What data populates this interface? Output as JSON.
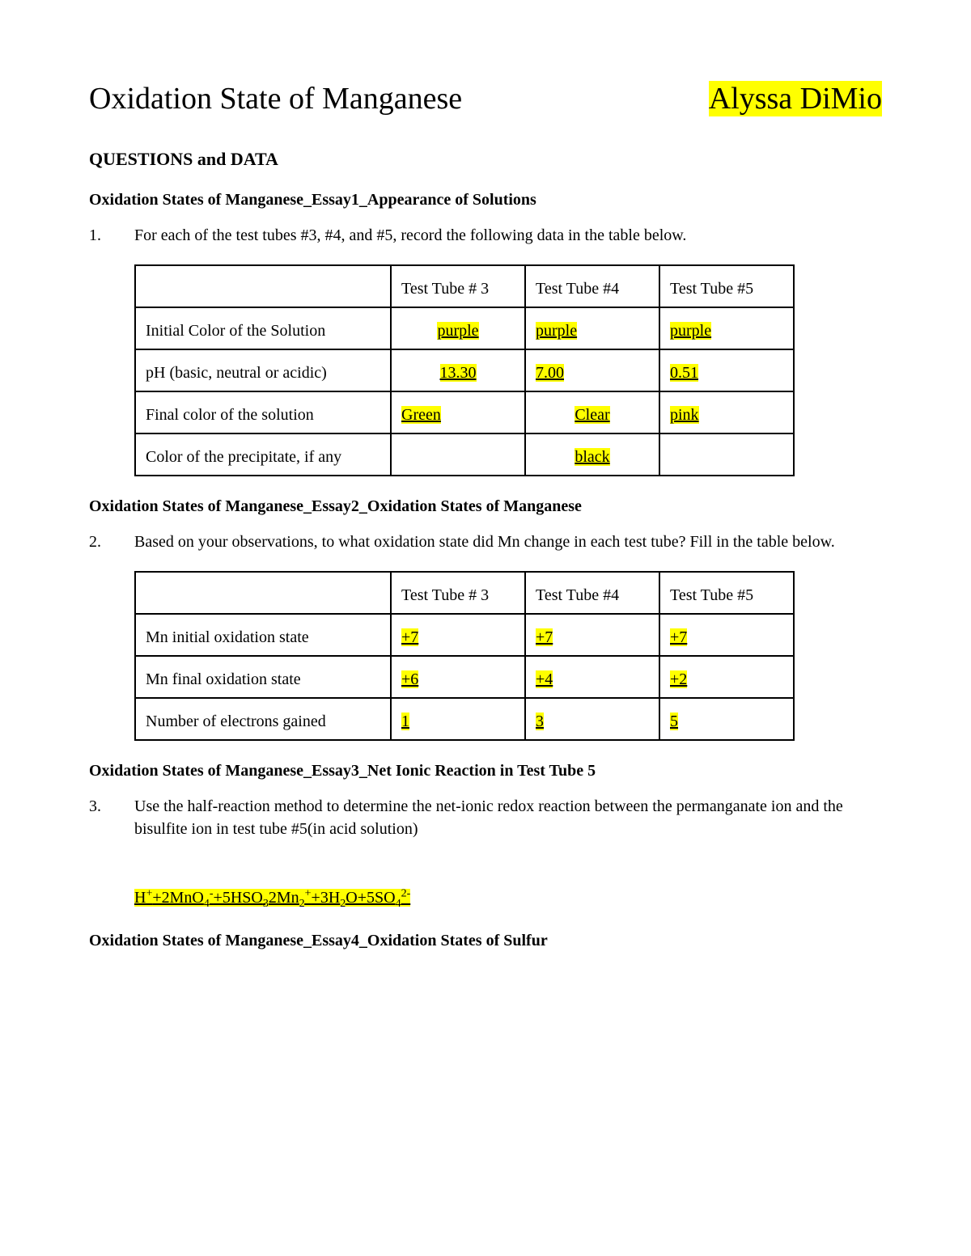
{
  "header": {
    "title": "Oxidation State of Manganese",
    "student": "Alyssa DiMio"
  },
  "section_title": "QUESTIONS and DATA",
  "essay1": {
    "heading": "Oxidation States of Manganese_Essay1_Appearance of Solutions",
    "q_num": "1.",
    "q_text": "For each of the test tubes #3, #4, and #5, record the following data in the table below.",
    "table": {
      "col_headers": [
        "",
        "Test Tube # 3",
        "Test Tube #4",
        "Test Tube #5"
      ],
      "rows": [
        {
          "label": "Initial Color of the Solution",
          "cells": [
            "purple",
            "purple",
            "purple"
          ],
          "highlight": [
            true,
            true,
            true
          ],
          "underline": true,
          "align": [
            "center",
            "left",
            "left"
          ]
        },
        {
          "label": "pH (basic, neutral or acidic)",
          "cells": [
            "13.30",
            "7.00",
            "0.51"
          ],
          "highlight": [
            true,
            true,
            true
          ],
          "underline": true,
          "align": [
            "center",
            "left",
            "left"
          ]
        },
        {
          "label": "Final color of the solution",
          "cells": [
            "Green",
            "Clear",
            "pink"
          ],
          "highlight": [
            true,
            true,
            true
          ],
          "underline": true,
          "align": [
            "left",
            "center",
            "left"
          ]
        },
        {
          "label": "Color of the precipitate, if any",
          "cells": [
            "",
            "black",
            ""
          ],
          "highlight": [
            false,
            true,
            false
          ],
          "underline": true,
          "align": [
            "left",
            "center",
            "left"
          ]
        }
      ]
    }
  },
  "essay2": {
    "heading": "Oxidation States of Manganese_Essay2_Oxidation States of Manganese",
    "q_num": "2.",
    "q_text": "Based on your observations, to what oxidation state did Mn change in each test tube? Fill in the table below.",
    "table": {
      "col_headers": [
        "",
        "Test Tube # 3",
        "Test Tube #4",
        "Test Tube #5"
      ],
      "rows": [
        {
          "label": "Mn initial oxidation state",
          "cells": [
            "+7",
            "+7",
            "+7"
          ],
          "highlight": [
            true,
            true,
            true
          ],
          "underline": true,
          "align": [
            "left",
            "left",
            "left"
          ]
        },
        {
          "label": "Mn final oxidation state",
          "cells": [
            "+6",
            "+4",
            "+2"
          ],
          "highlight": [
            true,
            true,
            true
          ],
          "underline": true,
          "align": [
            "left",
            "left",
            "left"
          ]
        },
        {
          "label": "Number of electrons gained",
          "cells": [
            "1",
            "3",
            "5"
          ],
          "highlight": [
            true,
            true,
            true
          ],
          "underline": true,
          "align": [
            "left",
            "left",
            "left"
          ]
        }
      ]
    }
  },
  "essay3": {
    "heading": "Oxidation States of Manganese_Essay3_Net Ionic Reaction in Test Tube 5",
    "q_num": "3.",
    "q_text": "Use the half-reaction method to determine the net-ionic redox reaction between the permanganate ion and the bisulfite ion in test tube #5(in acid solution)",
    "equation_html": "H<sup>+</sup>+2MnO<sub>4</sub><sup>-</sup>+5HSO<sub>3</sub>2Mn<sub>2</sub><sup>+</sup>+3H<sub>2</sub>O+5SO<sub>4</sub><sup>2-</sup>"
  },
  "essay4": {
    "heading": "Oxidation States of Manganese_Essay4_Oxidation States of Sulfur"
  },
  "style": {
    "highlight_color": "#ffff00",
    "text_color": "#000000",
    "background_color": "#ffffff",
    "border_color": "#000000",
    "title_fontsize": 38,
    "body_fontsize": 20,
    "heading_fontsize": 22,
    "font_family": "Times New Roman"
  }
}
